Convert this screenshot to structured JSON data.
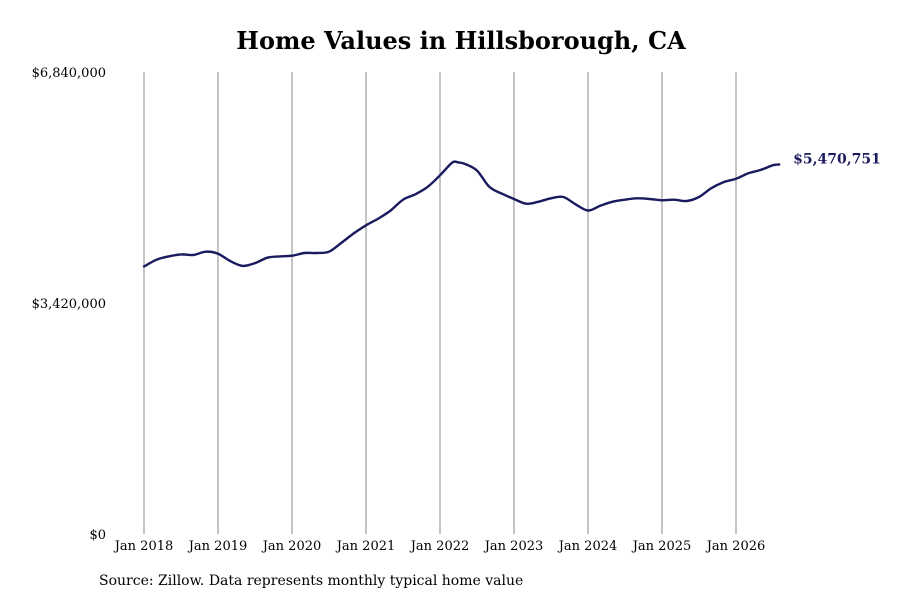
{
  "chart_data": {
    "type": "line",
    "title": "Home Values in Hillsborough, CA",
    "xlabel": "",
    "ylabel": "",
    "x_tick_labels": [
      "Jan 2018",
      "Jan 2019",
      "Jan 2020",
      "Jan 2021",
      "Jan 2022",
      "Jan 2023",
      "Jan 2024",
      "Jan 2025",
      "Jan 2026"
    ],
    "y_tick_labels": [
      "$0",
      "$3,420,000",
      "$6,840,000"
    ],
    "ylim": [
      0,
      6840000
    ],
    "xlim": [
      "2018-01",
      "2026-12"
    ],
    "grid": {
      "vertical": true,
      "horizontal": false
    },
    "legend": "none",
    "line_color": "#1a1a5e",
    "end_label": "$5,470,751",
    "series": [
      {
        "x": [
          "2018-01",
          "2018-03",
          "2018-05",
          "2018-07",
          "2018-09",
          "2018-11",
          "2019-01",
          "2019-03",
          "2019-05",
          "2019-07",
          "2019-09",
          "2019-11",
          "2020-01",
          "2020-03",
          "2020-05",
          "2020-07",
          "2020-09",
          "2020-11",
          "2021-01",
          "2021-03",
          "2021-05",
          "2021-07",
          "2021-09",
          "2021-11",
          "2022-01",
          "2022-03",
          "2022-04",
          "2022-05",
          "2022-07",
          "2022-09",
          "2022-11",
          "2023-01",
          "2023-03",
          "2023-05",
          "2023-07",
          "2023-09",
          "2023-11",
          "2024-01",
          "2024-03",
          "2024-05",
          "2024-07",
          "2024-09",
          "2024-11",
          "2025-01",
          "2025-03",
          "2025-05",
          "2025-07",
          "2025-09",
          "2025-11",
          "2026-01",
          "2026-03",
          "2026-05",
          "2026-07",
          "2026-08"
        ],
        "values": [
          3960000,
          4060000,
          4110000,
          4140000,
          4130000,
          4180000,
          4150000,
          4040000,
          3970000,
          4010000,
          4090000,
          4110000,
          4120000,
          4160000,
          4160000,
          4180000,
          4310000,
          4450000,
          4570000,
          4670000,
          4790000,
          4950000,
          5030000,
          5140000,
          5310000,
          5500000,
          5500000,
          5480000,
          5380000,
          5140000,
          5040000,
          4960000,
          4890000,
          4920000,
          4970000,
          4990000,
          4880000,
          4790000,
          4860000,
          4920000,
          4950000,
          4970000,
          4960000,
          4940000,
          4950000,
          4930000,
          4990000,
          5120000,
          5210000,
          5260000,
          5340000,
          5390000,
          5460000,
          5470751
        ]
      }
    ]
  },
  "source_note": "Source: Zillow. Data represents monthly typical home value"
}
